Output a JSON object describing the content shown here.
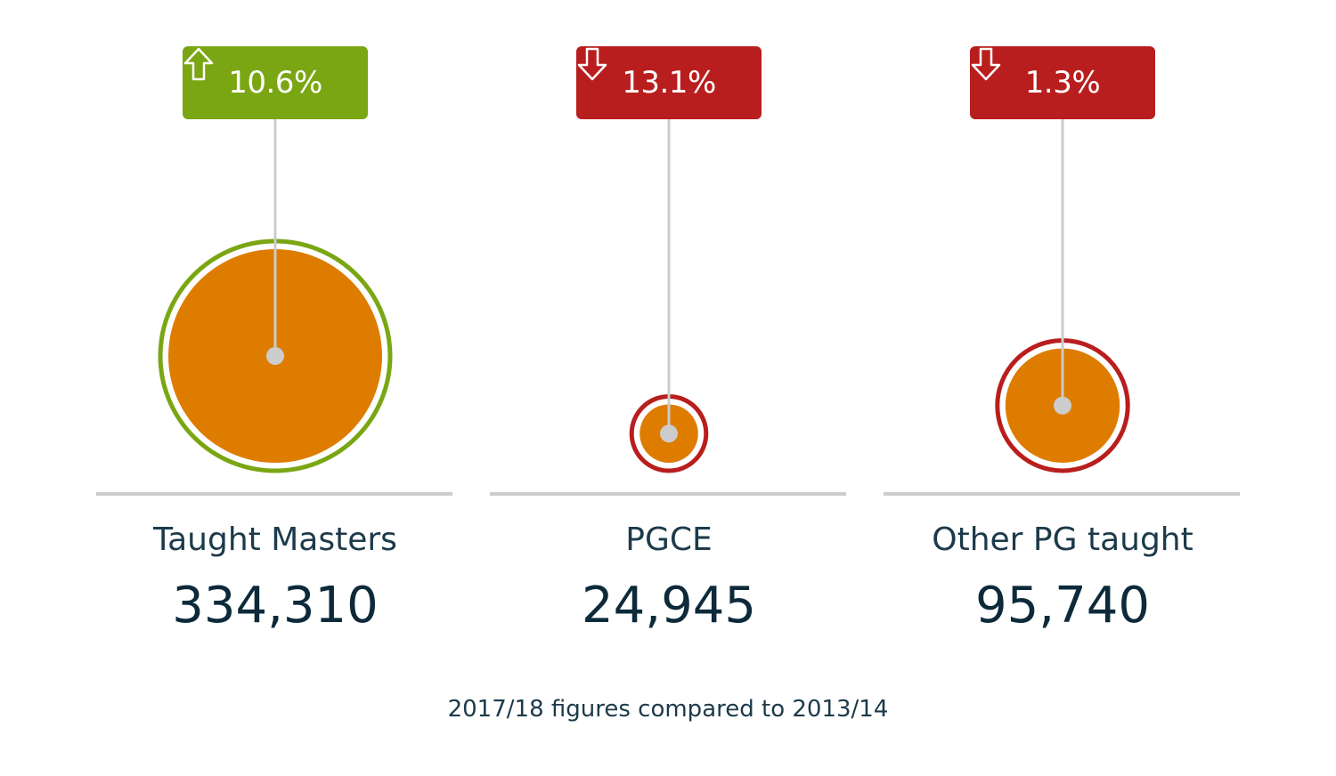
{
  "chart_data": {
    "type": "bubble",
    "categories": [
      "Taught Masters",
      "PGCE",
      "Other PG taught"
    ],
    "values": [
      334310,
      24945,
      95740
    ],
    "value_labels": [
      "334,310",
      "24,945",
      "95,740"
    ],
    "changes": [
      {
        "label": "10.6%",
        "direction": "up",
        "color": "#7aa613"
      },
      {
        "label": "13.1%",
        "direction": "down",
        "color": "#b91e1e"
      },
      {
        "label": "1.3%",
        "direction": "down",
        "color": "#b91e1e"
      }
    ],
    "bubble_color": "#de7c00",
    "baseline_color": "#cccccc",
    "footnote": "2017/18 figures compared to 2013/14"
  }
}
